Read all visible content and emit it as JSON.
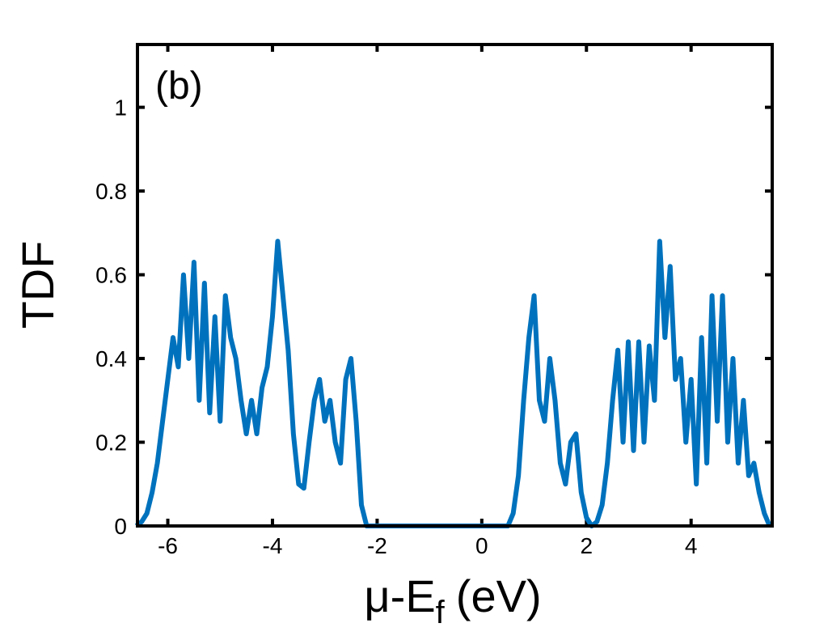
{
  "chart_data": {
    "type": "line",
    "annotation": "(b)",
    "ylabel": "TDF",
    "xlabel": {
      "main": "μ-E",
      "sub": "f",
      "unit": "(eV)"
    },
    "x": [
      -6.6,
      -6.5,
      -6.4,
      -6.3,
      -6.2,
      -6.1,
      -6.0,
      -5.9,
      -5.8,
      -5.7,
      -5.6,
      -5.5,
      -5.4,
      -5.3,
      -5.2,
      -5.1,
      -5.0,
      -4.9,
      -4.8,
      -4.7,
      -4.6,
      -4.5,
      -4.4,
      -4.3,
      -4.2,
      -4.1,
      -4.0,
      -3.9,
      -3.8,
      -3.7,
      -3.6,
      -3.5,
      -3.4,
      -3.3,
      -3.2,
      -3.1,
      -3.0,
      -2.9,
      -2.8,
      -2.7,
      -2.6,
      -2.5,
      -2.4,
      -2.3,
      -2.2,
      -2.1,
      0.5,
      0.6,
      0.7,
      0.8,
      0.9,
      1.0,
      1.1,
      1.2,
      1.3,
      1.4,
      1.5,
      1.6,
      1.7,
      1.8,
      1.9,
      2.0,
      2.1,
      2.2,
      2.3,
      2.4,
      2.5,
      2.6,
      2.7,
      2.8,
      2.9,
      3.0,
      3.1,
      3.2,
      3.3,
      3.4,
      3.5,
      3.6,
      3.7,
      3.8,
      3.9,
      4.0,
      4.1,
      4.2,
      4.3,
      4.4,
      4.5,
      4.6,
      4.7,
      4.8,
      4.9,
      5.0,
      5.1,
      5.2,
      5.3,
      5.4,
      5.5
    ],
    "series": [
      {
        "name": "TDF",
        "color": "#0072bd",
        "values": [
          0,
          0.01,
          0.03,
          0.08,
          0.15,
          0.25,
          0.35,
          0.45,
          0.38,
          0.6,
          0.4,
          0.63,
          0.3,
          0.58,
          0.27,
          0.5,
          0.25,
          0.55,
          0.45,
          0.4,
          0.3,
          0.22,
          0.3,
          0.22,
          0.33,
          0.38,
          0.5,
          0.68,
          0.55,
          0.42,
          0.22,
          0.1,
          0.09,
          0.2,
          0.3,
          0.35,
          0.25,
          0.3,
          0.2,
          0.15,
          0.35,
          0.4,
          0.25,
          0.05,
          0,
          0,
          0,
          0.03,
          0.12,
          0.3,
          0.45,
          0.55,
          0.3,
          0.25,
          0.4,
          0.3,
          0.15,
          0.1,
          0.2,
          0.22,
          0.08,
          0.02,
          0,
          0.01,
          0.05,
          0.15,
          0.3,
          0.42,
          0.2,
          0.44,
          0.18,
          0.44,
          0.2,
          0.43,
          0.3,
          0.68,
          0.45,
          0.62,
          0.35,
          0.4,
          0.2,
          0.35,
          0.1,
          0.45,
          0.15,
          0.55,
          0.25,
          0.55,
          0.2,
          0.4,
          0.15,
          0.3,
          0.12,
          0.15,
          0.08,
          0.03,
          0
        ]
      }
    ],
    "xlim": [
      -6.58,
      5.55
    ],
    "ylim": [
      0,
      1.15
    ],
    "xticks": [
      -6,
      -4,
      -2,
      0,
      2,
      4
    ],
    "yticks": [
      0,
      0.2,
      0.4,
      0.6,
      0.8,
      1
    ]
  }
}
